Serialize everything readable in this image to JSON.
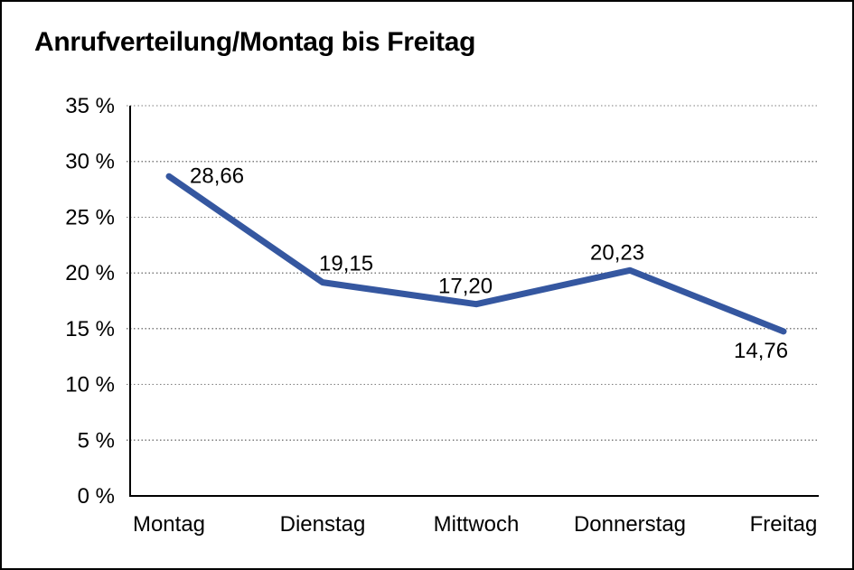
{
  "page": {
    "background": "#ffffff"
  },
  "chart_data": {
    "type": "line",
    "title": "Anrufverteilung/Montag bis Freitag",
    "categories": [
      "Montag",
      "Dienstag",
      "Mittwoch",
      "Donnerstag",
      "Freitag"
    ],
    "series": [
      {
        "name": "Anrufverteilung",
        "values": [
          28.66,
          19.15,
          17.2,
          20.23,
          14.76
        ]
      }
    ],
    "value_labels": [
      "28,66",
      "19,15",
      "17,20",
      "20,23",
      "14,76"
    ],
    "xlabel": "",
    "ylabel": "",
    "ylim": [
      0,
      35
    ],
    "yticks": [
      0,
      5,
      10,
      15,
      20,
      25,
      30,
      35
    ],
    "ytick_labels": [
      "0 %",
      "5 %",
      "10 %",
      "15 %",
      "20 %",
      "25 %",
      "30 %",
      "35 %"
    ],
    "grid": "horizontal-dotted",
    "legend": "none",
    "colors": {
      "line": "#3557A0",
      "grid": "#7d7d7d",
      "axis": "#000000",
      "text": "#000000",
      "frame": "#000000",
      "background": "#ffffff"
    }
  }
}
